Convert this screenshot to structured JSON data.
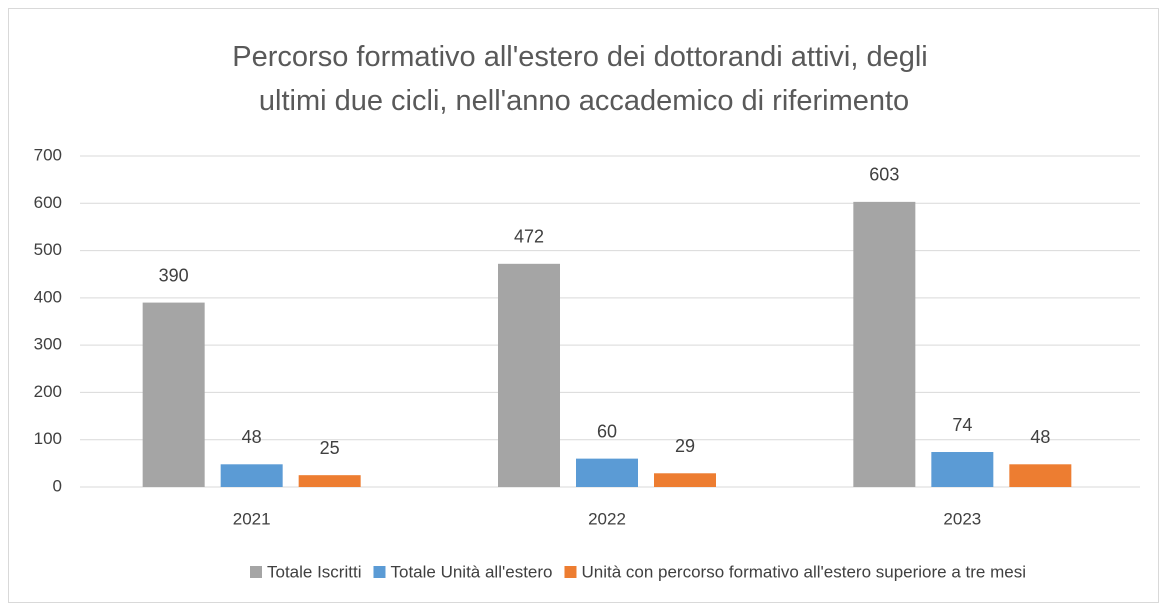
{
  "chart_data": {
    "type": "bar",
    "title": "Percorso formativo all'estero dei dottorandi attivi, degli ultimi due cicli, nell'anno accademico di riferimento",
    "categories": [
      "2021",
      "2022",
      "2023"
    ],
    "series": [
      {
        "name": "Totale Iscritti",
        "color": "#a5a5a5",
        "values": [
          390,
          472,
          603
        ]
      },
      {
        "name": "Totale Unità all'estero",
        "color": "#5b9bd5",
        "values": [
          48,
          60,
          74
        ]
      },
      {
        "name": "Unità con percorso formativo all'estero superiore a tre mesi",
        "color": "#ed7d31",
        "values": [
          25,
          29,
          48
        ]
      }
    ],
    "ylim": [
      0,
      700
    ],
    "yticks": [
      0,
      100,
      200,
      300,
      400,
      500,
      600,
      700
    ],
    "grid": true,
    "legend": "bottom"
  }
}
